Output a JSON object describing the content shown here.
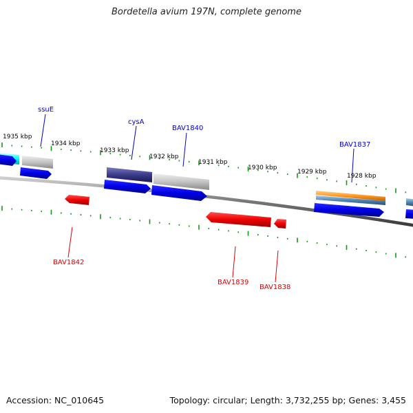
{
  "title": "Bordetella avium 197N, complete genome",
  "footer": {
    "accession": "Accession: NC_010645",
    "stats": "Topology: circular; Length: 3,732,255 bp; Genes: 3,455"
  },
  "colors": {
    "forward_label": "#0000cc",
    "reverse_label": "#dd0000",
    "tick": "#119911",
    "backbone": "#777777",
    "cds_forward": "#0000ee",
    "cds_reverse": "#ee0000",
    "gene_grey": "#bbbbbb",
    "gene_dark": "#3a3a8a",
    "gene_cyan": "#00ffff",
    "gene_orange": "#ffa020",
    "gene_steel": "#4f86b5"
  },
  "scale_labels": [
    "1935 kbp",
    "1934 kbp",
    "1933 kbp",
    "1932 kbp",
    "1931 kbp",
    "1930 kbp",
    "1929 kbp",
    "1928 kbp"
  ],
  "forward_labels": [
    "ssuE",
    "cysA",
    "BAV1840",
    "BAV1837"
  ],
  "reverse_labels": [
    "BAV1842",
    "BAV1839",
    "BAV1838"
  ]
}
